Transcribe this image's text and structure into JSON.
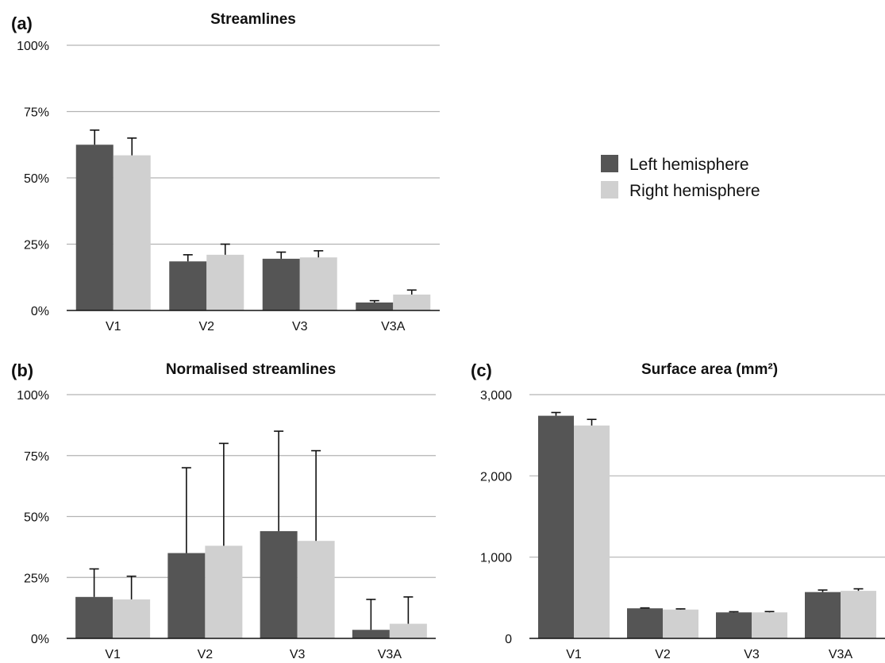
{
  "colors": {
    "left": "#555555",
    "right": "#d0d0d0"
  },
  "legend": [
    {
      "name": "Left hemisphere",
      "color": "#555555"
    },
    {
      "name": "Right hemisphere",
      "color": "#d0d0d0"
    }
  ],
  "chart_data": [
    {
      "panel": "(a)",
      "type": "bar",
      "title": "Streamlines",
      "categories": [
        "V1",
        "V2",
        "V3",
        "V3A"
      ],
      "yticks": [
        0,
        25,
        50,
        75,
        100
      ],
      "ytick_labels": [
        "0%",
        "25%",
        "50%",
        "75%",
        "100%"
      ],
      "ylim": [
        0,
        100
      ],
      "grid": true,
      "series": [
        {
          "name": "Left hemisphere",
          "values": [
            62.5,
            18.5,
            19.5,
            3
          ],
          "errors": [
            5.5,
            2.5,
            2.5,
            0.7
          ]
        },
        {
          "name": "Right hemisphere",
          "values": [
            58.5,
            21,
            20,
            6
          ],
          "errors": [
            6.5,
            4,
            2.5,
            1.7
          ]
        }
      ]
    },
    {
      "panel": "(b)",
      "type": "bar",
      "title": "Normalised streamlines",
      "categories": [
        "V1",
        "V2",
        "V3",
        "V3A"
      ],
      "yticks": [
        0,
        25,
        50,
        75,
        100
      ],
      "ytick_labels": [
        "0%",
        "25%",
        "50%",
        "75%",
        "100%"
      ],
      "ylim": [
        0,
        100
      ],
      "grid": true,
      "series": [
        {
          "name": "Left hemisphere",
          "values": [
            17,
            35,
            44,
            3.5
          ],
          "errors": [
            11.5,
            35,
            41,
            12.5
          ]
        },
        {
          "name": "Right hemisphere",
          "values": [
            16,
            38,
            40,
            6
          ],
          "errors": [
            9.5,
            42,
            37,
            11
          ]
        }
      ]
    },
    {
      "panel": "(c)",
      "type": "bar",
      "title": "Surface area (mm²)",
      "categories": [
        "V1",
        "V2",
        "V3",
        "V3A"
      ],
      "yticks": [
        0,
        1000,
        2000,
        3000
      ],
      "ytick_labels": [
        "0",
        "1,000",
        "2,000",
        "3,000"
      ],
      "ylim": [
        0,
        3000
      ],
      "grid": true,
      "series": [
        {
          "name": "Left hemisphere",
          "values": [
            2740,
            370,
            320,
            570
          ],
          "errors": [
            40,
            5,
            8,
            25
          ]
        },
        {
          "name": "Right hemisphere",
          "values": [
            2620,
            355,
            320,
            585
          ],
          "errors": [
            75,
            8,
            10,
            25
          ]
        }
      ]
    }
  ]
}
